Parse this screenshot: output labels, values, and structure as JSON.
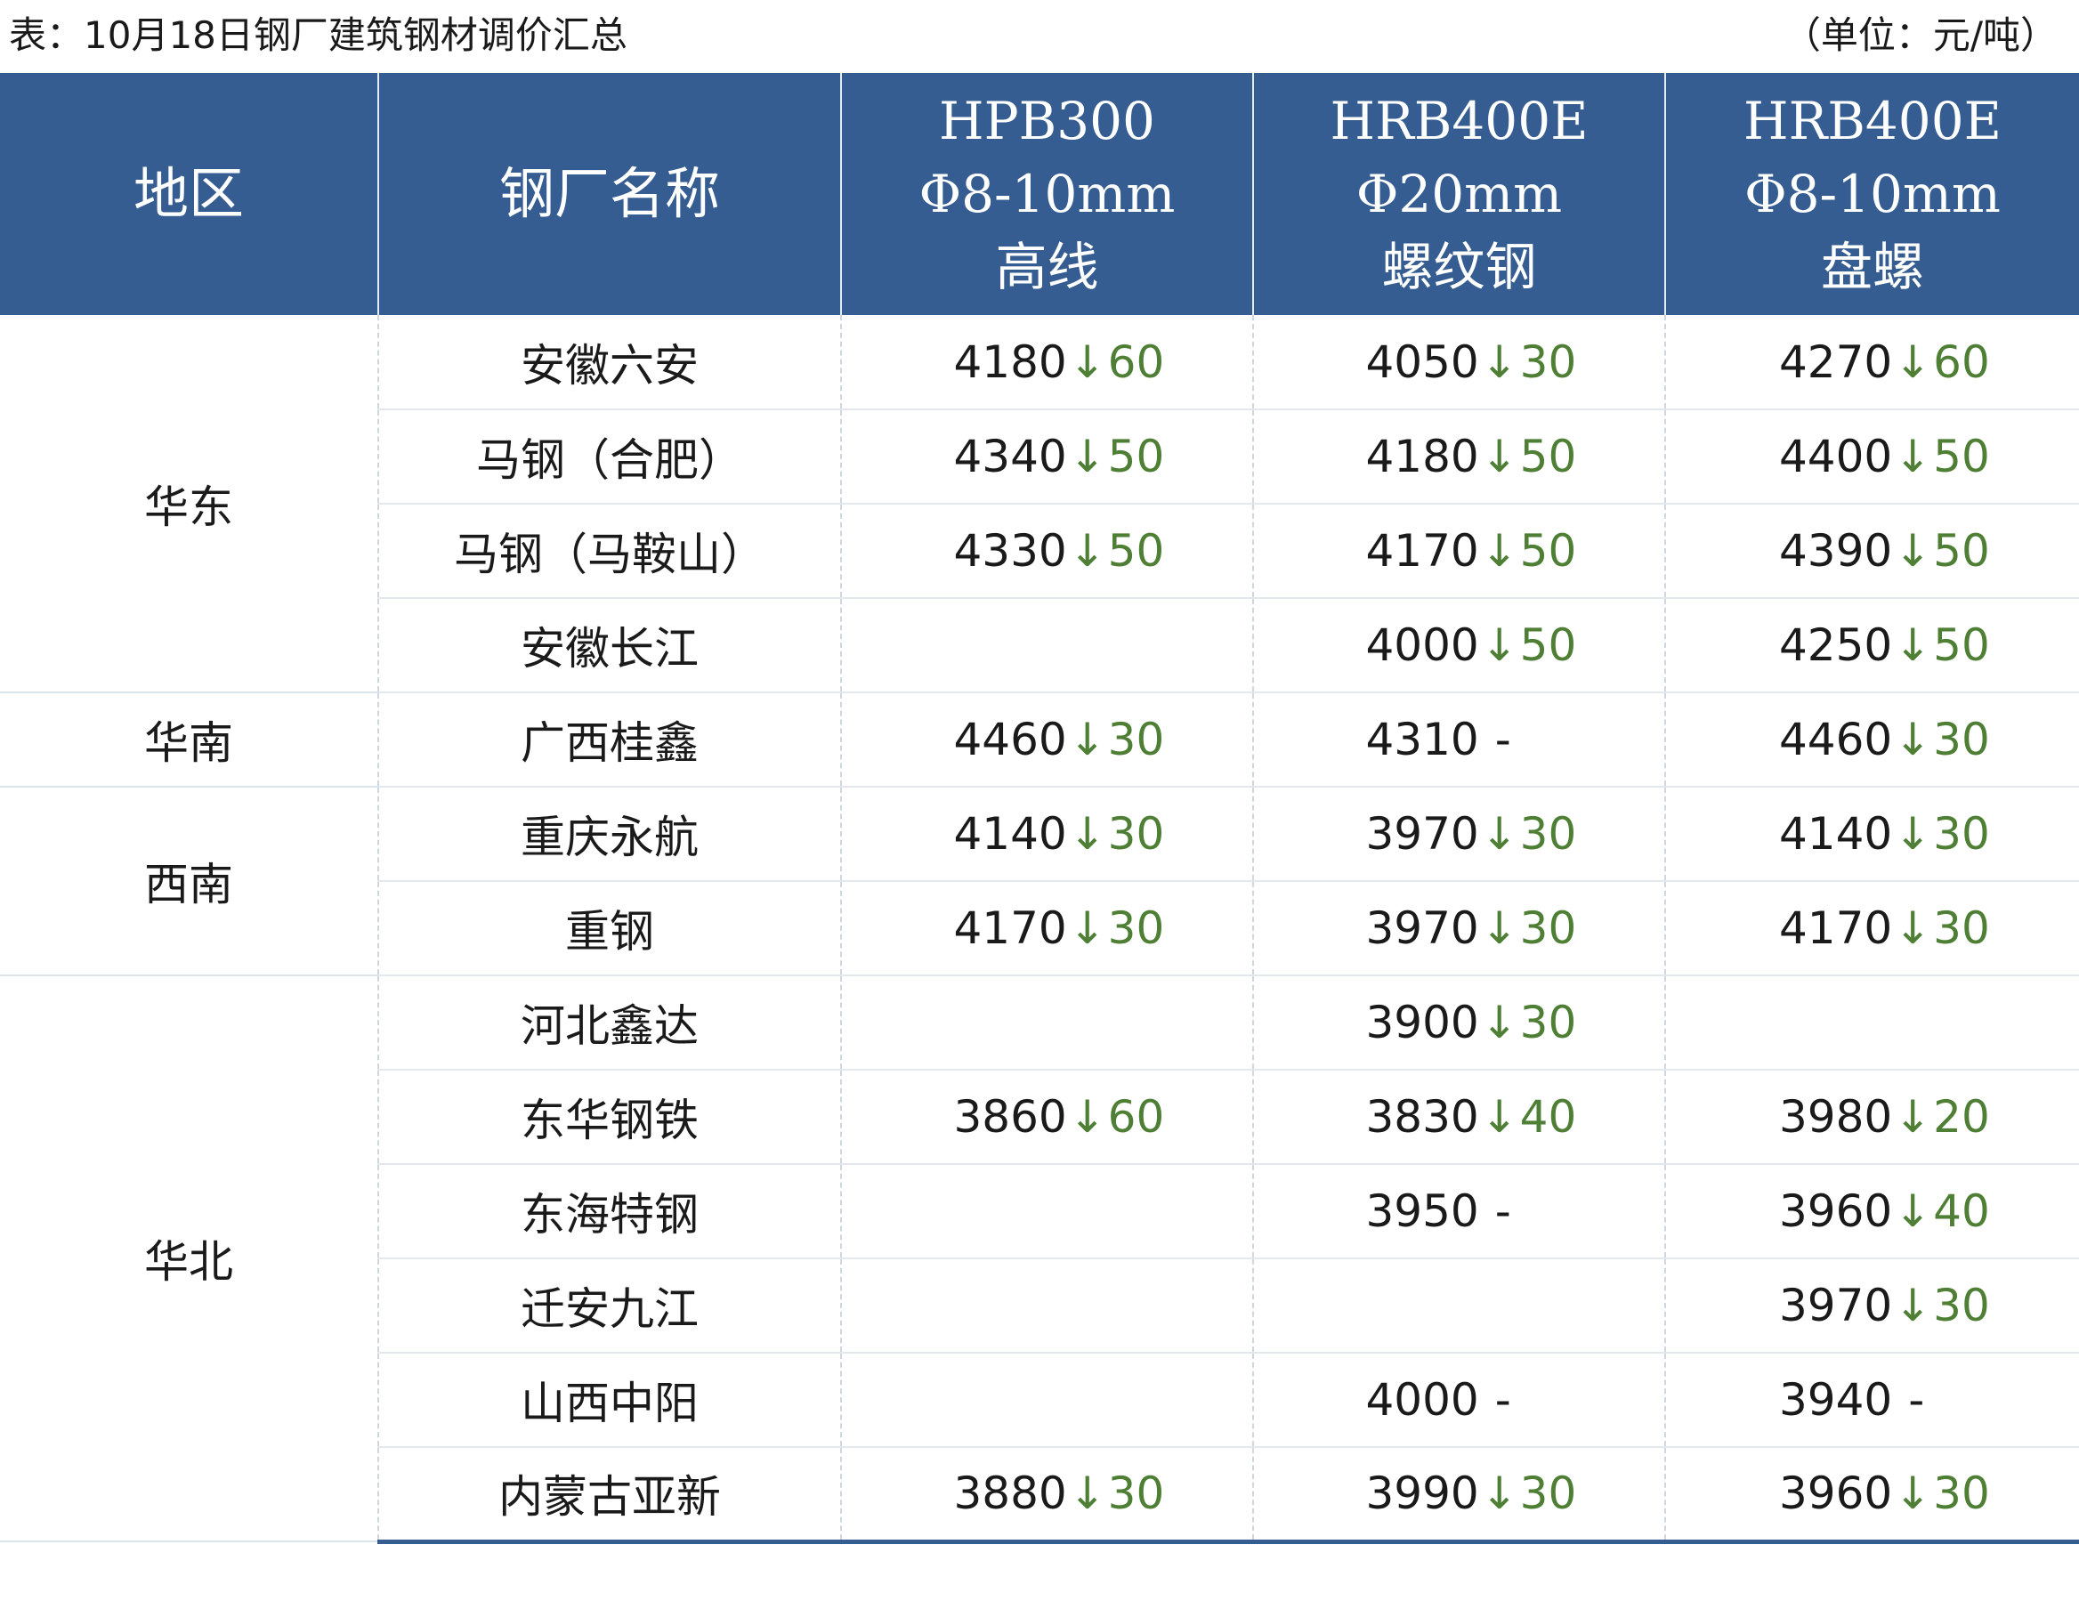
{
  "caption": {
    "title": "表：10月18日钢厂建筑钢材调价汇总",
    "unit": "（单位：元/吨）"
  },
  "headers": {
    "region": "地区",
    "mill": "钢厂名称",
    "hpb300": [
      "HPB300",
      "Φ8-10mm",
      "高线"
    ],
    "hrb400e_20": [
      "HRB400E",
      "Φ20mm",
      "螺纹钢"
    ],
    "hrb400e_8": [
      "HRB400E",
      "Φ8-10mm",
      "盘螺"
    ]
  },
  "regions": [
    "华东",
    "华南",
    "西南",
    "华北"
  ],
  "rows": [
    {
      "region": "华东",
      "mill": "安徽六安",
      "hpb300": {
        "price": "4180",
        "arrow": "↓",
        "change": "60"
      },
      "hrb20": {
        "price": "4050",
        "arrow": "↓",
        "change": "30"
      },
      "hrb8": {
        "price": "4270",
        "arrow": "↓",
        "change": "60"
      }
    },
    {
      "region": "华东",
      "mill": "马钢（合肥）",
      "hpb300": {
        "price": "4340",
        "arrow": "↓",
        "change": "50"
      },
      "hrb20": {
        "price": "4180",
        "arrow": "↓",
        "change": "50"
      },
      "hrb8": {
        "price": "4400",
        "arrow": "↓",
        "change": "50"
      }
    },
    {
      "region": "华东",
      "mill": "马钢（马鞍山）",
      "hpb300": {
        "price": "4330",
        "arrow": "↓",
        "change": "50"
      },
      "hrb20": {
        "price": "4170",
        "arrow": "↓",
        "change": "50"
      },
      "hrb8": {
        "price": "4390",
        "arrow": "↓",
        "change": "50"
      }
    },
    {
      "region": "华东",
      "mill": "安徽长江",
      "hpb300": null,
      "hrb20": {
        "price": "4000",
        "arrow": "↓",
        "change": "50"
      },
      "hrb8": {
        "price": "4250",
        "arrow": "↓",
        "change": "50"
      }
    },
    {
      "region": "华南",
      "mill": "广西桂鑫",
      "hpb300": {
        "price": "4460",
        "arrow": "↓",
        "change": "30"
      },
      "hrb20": {
        "price": "4310",
        "flat": "-"
      },
      "hrb8": {
        "price": "4460",
        "arrow": "↓",
        "change": "30"
      }
    },
    {
      "region": "西南",
      "mill": "重庆永航",
      "hpb300": {
        "price": "4140",
        "arrow": "↓",
        "change": "30"
      },
      "hrb20": {
        "price": "3970",
        "arrow": "↓",
        "change": "30"
      },
      "hrb8": {
        "price": "4140",
        "arrow": "↓",
        "change": "30"
      }
    },
    {
      "region": "西南",
      "mill": "重钢",
      "hpb300": {
        "price": "4170",
        "arrow": "↓",
        "change": "30"
      },
      "hrb20": {
        "price": "3970",
        "arrow": "↓",
        "change": "30"
      },
      "hrb8": {
        "price": "4170",
        "arrow": "↓",
        "change": "30"
      }
    },
    {
      "region": "华北",
      "mill": "河北鑫达",
      "hpb300": null,
      "hrb20": {
        "price": "3900",
        "arrow": "↓",
        "change": "30"
      },
      "hrb8": null
    },
    {
      "region": "华北",
      "mill": "东华钢铁",
      "hpb300": {
        "price": "3860",
        "arrow": "↓",
        "change": "60"
      },
      "hrb20": {
        "price": "3830",
        "arrow": "↓",
        "change": "40"
      },
      "hrb8": {
        "price": "3980",
        "arrow": "↓",
        "change": "20"
      }
    },
    {
      "region": "华北",
      "mill": "东海特钢",
      "hpb300": null,
      "hrb20": {
        "price": "3950",
        "flat": "-"
      },
      "hrb8": {
        "price": "3960",
        "arrow": "↓",
        "change": "40"
      }
    },
    {
      "region": "华北",
      "mill": "迁安九江",
      "hpb300": null,
      "hrb20": null,
      "hrb8": {
        "price": "3970",
        "arrow": "↓",
        "change": "30"
      }
    },
    {
      "region": "华北",
      "mill": "山西中阳",
      "hpb300": null,
      "hrb20": {
        "price": "4000",
        "flat": "-"
      },
      "hrb8": {
        "price": "3940",
        "flat": "-"
      }
    },
    {
      "region": "华北",
      "mill": "内蒙古亚新",
      "hpb300": {
        "price": "3880",
        "arrow": "↓",
        "change": "30"
      },
      "hrb20": {
        "price": "3990",
        "arrow": "↓",
        "change": "30"
      },
      "hrb8": {
        "price": "3960",
        "arrow": "↓",
        "change": "30"
      }
    }
  ],
  "colors": {
    "header_bg": "#355d91",
    "header_text": "#ffffff",
    "decrease": "#4e7f35",
    "text": "#1a1a1a"
  }
}
